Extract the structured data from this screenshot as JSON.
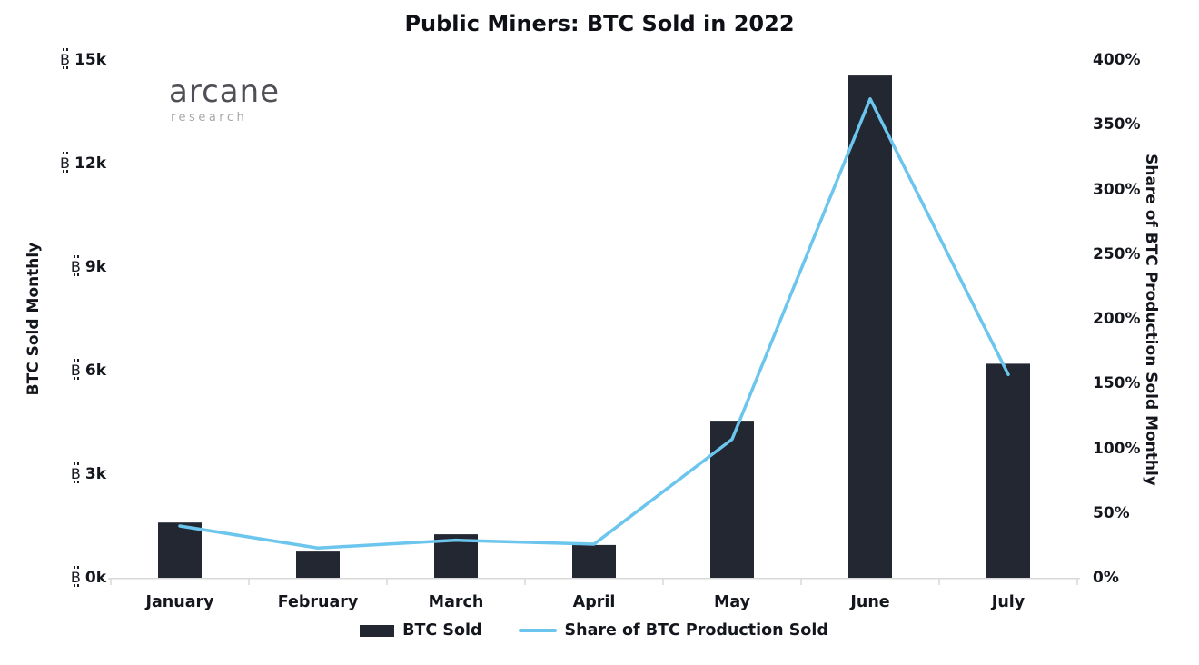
{
  "title": "Public Miners: BTC Sold in 2022",
  "logo": {
    "name": "arcane",
    "sub": "research"
  },
  "colors": {
    "bar": "#222731",
    "line": "#6bc5ec",
    "text": "#14161d",
    "axis_line": "#d9d9d9",
    "logo_main": "#4f5055",
    "logo_sub": "#a6a7ab"
  },
  "chart_data": {
    "type": "bar+line combo",
    "categories": [
      "January",
      "February",
      "March",
      "April",
      "May",
      "June",
      "July"
    ],
    "series": [
      {
        "name": "BTC Sold",
        "type": "bar",
        "axis": "left",
        "unit": "BTC",
        "values": [
          1600,
          760,
          1260,
          950,
          4550,
          14550,
          6200
        ]
      },
      {
        "name": "Share of BTC Production Sold",
        "type": "line",
        "axis": "right",
        "unit": "%",
        "values": [
          40,
          23,
          29,
          26,
          107,
          370,
          157
        ]
      }
    ],
    "left_axis": {
      "label": "BTC Sold Monthly",
      "tick_prefix": "₿",
      "ticks": [
        "0k",
        "3k",
        "6k",
        "9k",
        "12k",
        "15k"
      ],
      "min": 0,
      "max": 15000
    },
    "right_axis": {
      "label": "Share of BTC Production Sold Monthly",
      "ticks": [
        "0%",
        "50%",
        "100%",
        "150%",
        "200%",
        "250%",
        "300%",
        "350%",
        "400%"
      ],
      "min": 0,
      "max": 400
    },
    "legend_position": "bottom",
    "grid": false
  }
}
